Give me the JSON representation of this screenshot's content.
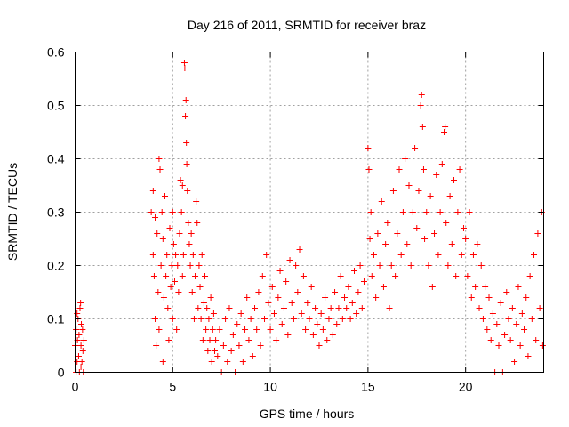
{
  "chart_data": {
    "type": "scatter",
    "title": "Day 216 of 2011, SRMTID for receiver braz",
    "xlabel": "GPS time / hours",
    "ylabel": "SRMTID / TECUs",
    "xlim": [
      0,
      24
    ],
    "ylim": [
      0,
      0.6
    ],
    "xticks": [
      0,
      5,
      10,
      15,
      20
    ],
    "yticks": [
      0,
      0.1,
      0.2,
      0.3,
      0.4,
      0.5,
      0.6
    ],
    "xtick_labels": [
      "0",
      "5",
      "10",
      "15",
      "20"
    ],
    "ytick_labels": [
      "0",
      "0.1",
      "0.2",
      "0.3",
      "0.4",
      "0.5",
      "0.6"
    ],
    "grid": true,
    "marker": "+",
    "color": "#ff0000",
    "series": [
      {
        "points": [
          [
            0.0,
            0.05
          ],
          [
            0.05,
            0.08
          ],
          [
            0.1,
            0.02
          ],
          [
            0.12,
            0.06
          ],
          [
            0.15,
            0.1
          ],
          [
            0.18,
            0.03
          ],
          [
            0.2,
            0.07
          ],
          [
            0.22,
            0.0
          ],
          [
            0.25,
            0.12
          ],
          [
            0.28,
            0.13
          ],
          [
            0.3,
            0.05
          ],
          [
            0.32,
            0.09
          ],
          [
            0.35,
            0.02
          ],
          [
            0.38,
            0.08
          ],
          [
            0.4,
            0.04
          ],
          [
            0.42,
            0.0
          ],
          [
            0.45,
            0.06
          ],
          [
            0.05,
            0.0
          ],
          [
            0.1,
            0.11
          ],
          [
            0.3,
            0.01
          ],
          [
            3.9,
            0.3
          ],
          [
            4.0,
            0.34
          ],
          [
            4.0,
            0.22
          ],
          [
            4.05,
            0.18
          ],
          [
            4.1,
            0.29
          ],
          [
            4.1,
            0.1
          ],
          [
            4.15,
            0.05
          ],
          [
            4.2,
            0.26
          ],
          [
            4.25,
            0.15
          ],
          [
            4.3,
            0.4
          ],
          [
            4.3,
            0.08
          ],
          [
            4.35,
            0.38
          ],
          [
            4.4,
            0.2
          ],
          [
            4.45,
            0.3
          ],
          [
            4.5,
            0.25
          ],
          [
            4.5,
            0.02
          ],
          [
            4.55,
            0.14
          ],
          [
            4.6,
            0.33
          ],
          [
            4.65,
            0.18
          ],
          [
            4.7,
            0.22
          ],
          [
            4.75,
            0.12
          ],
          [
            4.8,
            0.06
          ],
          [
            4.85,
            0.27
          ],
          [
            4.9,
            0.16
          ],
          [
            4.95,
            0.2
          ],
          [
            5.0,
            0.3
          ],
          [
            5.0,
            0.1
          ],
          [
            5.05,
            0.24
          ],
          [
            5.1,
            0.17
          ],
          [
            5.15,
            0.22
          ],
          [
            5.2,
            0.08
          ],
          [
            5.25,
            0.2
          ],
          [
            5.3,
            0.15
          ],
          [
            5.35,
            0.26
          ],
          [
            5.4,
            0.36
          ],
          [
            5.45,
            0.3
          ],
          [
            5.5,
            0.35
          ],
          [
            5.5,
            0.18
          ],
          [
            5.55,
            0.22
          ],
          [
            5.6,
            0.58
          ],
          [
            5.62,
            0.57
          ],
          [
            5.65,
            0.48
          ],
          [
            5.68,
            0.51
          ],
          [
            5.7,
            0.43
          ],
          [
            5.72,
            0.39
          ],
          [
            5.75,
            0.34
          ],
          [
            5.8,
            0.28
          ],
          [
            5.85,
            0.24
          ],
          [
            5.9,
            0.2
          ],
          [
            5.95,
            0.26
          ],
          [
            6.0,
            0.15
          ],
          [
            6.05,
            0.22
          ],
          [
            6.1,
            0.1
          ],
          [
            6.15,
            0.18
          ],
          [
            6.2,
            0.32
          ],
          [
            6.25,
            0.28
          ],
          [
            6.3,
            0.12
          ],
          [
            6.35,
            0.2
          ],
          [
            6.4,
            0.16
          ],
          [
            6.45,
            0.1
          ],
          [
            6.5,
            0.22
          ],
          [
            6.55,
            0.06
          ],
          [
            6.6,
            0.13
          ],
          [
            6.65,
            0.18
          ],
          [
            6.7,
            0.08
          ],
          [
            6.75,
            0.12
          ],
          [
            6.8,
            0.04
          ],
          [
            6.85,
            0.1
          ],
          [
            6.9,
            0.06
          ],
          [
            6.95,
            0.14
          ],
          [
            7.0,
            0.02
          ],
          [
            7.05,
            0.08
          ],
          [
            7.1,
            0.11
          ],
          [
            7.15,
            0.04
          ],
          [
            7.2,
            0.06
          ],
          [
            7.3,
            0.03
          ],
          [
            7.4,
            0.08
          ],
          [
            7.5,
            0.0
          ],
          [
            7.6,
            0.05
          ],
          [
            7.7,
            0.1
          ],
          [
            7.8,
            0.02
          ],
          [
            7.9,
            0.12
          ],
          [
            8.0,
            0.04
          ],
          [
            8.1,
            0.07
          ],
          [
            8.2,
            0.0
          ],
          [
            8.3,
            0.09
          ],
          [
            8.4,
            0.05
          ],
          [
            8.5,
            0.11
          ],
          [
            8.6,
            0.02
          ],
          [
            8.7,
            0.08
          ],
          [
            8.8,
            0.14
          ],
          [
            8.9,
            0.06
          ],
          [
            9.0,
            0.1
          ],
          [
            9.1,
            0.03
          ],
          [
            9.2,
            0.12
          ],
          [
            9.3,
            0.08
          ],
          [
            9.4,
            0.15
          ],
          [
            9.5,
            0.05
          ],
          [
            9.6,
            0.18
          ],
          [
            9.7,
            0.1
          ],
          [
            9.8,
            0.22
          ],
          [
            9.9,
            0.13
          ],
          [
            10.0,
            0.08
          ],
          [
            10.1,
            0.16
          ],
          [
            10.2,
            0.11
          ],
          [
            10.3,
            0.06
          ],
          [
            10.4,
            0.14
          ],
          [
            10.5,
            0.19
          ],
          [
            10.6,
            0.09
          ],
          [
            10.7,
            0.12
          ],
          [
            10.8,
            0.17
          ],
          [
            10.9,
            0.07
          ],
          [
            11.0,
            0.21
          ],
          [
            11.1,
            0.13
          ],
          [
            11.2,
            0.1
          ],
          [
            11.3,
            0.2
          ],
          [
            11.4,
            0.15
          ],
          [
            11.5,
            0.23
          ],
          [
            11.6,
            0.11
          ],
          [
            11.7,
            0.18
          ],
          [
            11.8,
            0.08
          ],
          [
            11.9,
            0.13
          ],
          [
            12.0,
            0.1
          ],
          [
            12.1,
            0.16
          ],
          [
            12.2,
            0.07
          ],
          [
            12.3,
            0.12
          ],
          [
            12.4,
            0.09
          ],
          [
            12.5,
            0.05
          ],
          [
            12.6,
            0.11
          ],
          [
            12.7,
            0.08
          ],
          [
            12.8,
            0.14
          ],
          [
            12.9,
            0.06
          ],
          [
            13.0,
            0.1
          ],
          [
            13.1,
            0.12
          ],
          [
            13.2,
            0.07
          ],
          [
            13.3,
            0.15
          ],
          [
            13.4,
            0.09
          ],
          [
            13.5,
            0.12
          ],
          [
            13.6,
            0.18
          ],
          [
            13.7,
            0.1
          ],
          [
            13.8,
            0.14
          ],
          [
            13.9,
            0.12
          ],
          [
            14.0,
            0.16
          ],
          [
            14.1,
            0.1
          ],
          [
            14.2,
            0.13
          ],
          [
            14.3,
            0.19
          ],
          [
            14.4,
            0.11
          ],
          [
            14.5,
            0.15
          ],
          [
            14.6,
            0.2
          ],
          [
            14.7,
            0.12
          ],
          [
            14.8,
            0.17
          ],
          [
            15.0,
            0.42
          ],
          [
            15.05,
            0.38
          ],
          [
            15.1,
            0.25
          ],
          [
            15.15,
            0.3
          ],
          [
            15.2,
            0.18
          ],
          [
            15.3,
            0.22
          ],
          [
            15.4,
            0.14
          ],
          [
            15.5,
            0.26
          ],
          [
            15.6,
            0.2
          ],
          [
            15.7,
            0.32
          ],
          [
            15.8,
            0.16
          ],
          [
            15.9,
            0.24
          ],
          [
            16.0,
            0.28
          ],
          [
            16.1,
            0.12
          ],
          [
            16.2,
            0.2
          ],
          [
            16.3,
            0.34
          ],
          [
            16.4,
            0.18
          ],
          [
            16.5,
            0.26
          ],
          [
            16.6,
            0.38
          ],
          [
            16.7,
            0.22
          ],
          [
            16.8,
            0.3
          ],
          [
            16.9,
            0.4
          ],
          [
            17.0,
            0.24
          ],
          [
            17.1,
            0.35
          ],
          [
            17.2,
            0.2
          ],
          [
            17.3,
            0.3
          ],
          [
            17.4,
            0.42
          ],
          [
            17.5,
            0.27
          ],
          [
            17.6,
            0.34
          ],
          [
            17.7,
            0.5
          ],
          [
            17.75,
            0.52
          ],
          [
            17.8,
            0.46
          ],
          [
            17.85,
            0.38
          ],
          [
            17.9,
            0.25
          ],
          [
            18.0,
            0.3
          ],
          [
            18.1,
            0.2
          ],
          [
            18.2,
            0.33
          ],
          [
            18.3,
            0.16
          ],
          [
            18.4,
            0.26
          ],
          [
            18.5,
            0.37
          ],
          [
            18.6,
            0.22
          ],
          [
            18.7,
            0.3
          ],
          [
            18.8,
            0.39
          ],
          [
            18.9,
            0.45
          ],
          [
            18.95,
            0.46
          ],
          [
            19.0,
            0.28
          ],
          [
            19.1,
            0.2
          ],
          [
            19.2,
            0.33
          ],
          [
            19.3,
            0.24
          ],
          [
            19.4,
            0.36
          ],
          [
            19.5,
            0.18
          ],
          [
            19.6,
            0.3
          ],
          [
            19.7,
            0.38
          ],
          [
            19.8,
            0.22
          ],
          [
            19.9,
            0.27
          ],
          [
            20.0,
            0.25
          ],
          [
            20.1,
            0.18
          ],
          [
            20.2,
            0.3
          ],
          [
            20.3,
            0.14
          ],
          [
            20.4,
            0.22
          ],
          [
            20.5,
            0.16
          ],
          [
            20.6,
            0.24
          ],
          [
            20.7,
            0.12
          ],
          [
            20.8,
            0.2
          ],
          [
            20.9,
            0.1
          ],
          [
            21.0,
            0.16
          ],
          [
            21.1,
            0.08
          ],
          [
            21.2,
            0.14
          ],
          [
            21.3,
            0.06
          ],
          [
            21.4,
            0.11
          ],
          [
            21.5,
            0.0
          ],
          [
            21.6,
            0.09
          ],
          [
            21.7,
            0.05
          ],
          [
            21.8,
            0.13
          ],
          [
            21.9,
            0.0
          ],
          [
            22.0,
            0.07
          ],
          [
            22.1,
            0.15
          ],
          [
            22.2,
            0.1
          ],
          [
            22.3,
            0.06
          ],
          [
            22.4,
            0.12
          ],
          [
            22.5,
            0.02
          ],
          [
            22.6,
            0.09
          ],
          [
            22.7,
            0.16
          ],
          [
            22.8,
            0.05
          ],
          [
            22.9,
            0.11
          ],
          [
            23.0,
            0.08
          ],
          [
            23.1,
            0.14
          ],
          [
            23.2,
            0.03
          ],
          [
            23.3,
            0.18
          ],
          [
            23.4,
            0.1
          ],
          [
            23.5,
            0.22
          ],
          [
            23.6,
            0.06
          ],
          [
            23.7,
            0.26
          ],
          [
            23.8,
            0.12
          ],
          [
            23.9,
            0.3
          ],
          [
            23.95,
            0.05
          ]
        ]
      }
    ]
  }
}
